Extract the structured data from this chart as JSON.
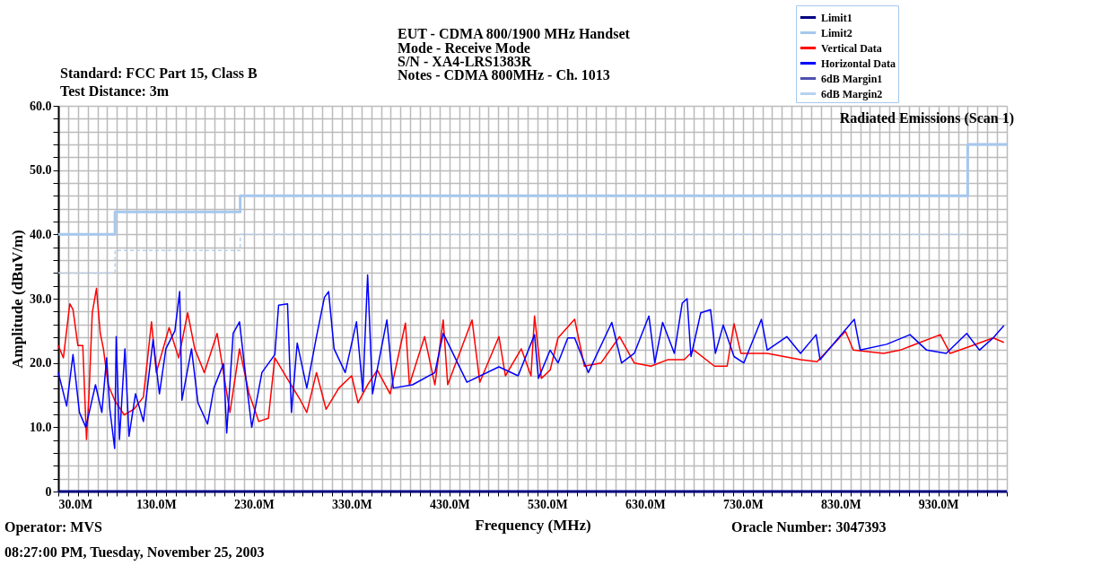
{
  "chart_data": {
    "type": "line",
    "title": "Radiated Emissions (Scan 1)",
    "xlabel": "Frequency (MHz)",
    "ylabel": "Amplitude (dBuV/m)",
    "annotations": [
      "Standard: FCC Part 15, Class B",
      "Test Distance: 3m",
      "EUT - CDMA 800/1900 MHz Handset",
      "Mode - Receive Mode",
      "S/N - XA4-LRS1383R",
      "Notes - CDMA 800MHz - Ch. 1013",
      "Operator: MVS",
      "08:27:00 PM, Tuesday, November 25, 2003",
      "Oracle Number: 3047393"
    ],
    "xlim": [
      30,
      1000
    ],
    "ylim": [
      0,
      60
    ],
    "xticks": [
      {
        "value": 30,
        "label": "30.0M"
      },
      {
        "value": 40,
        "label": null
      },
      {
        "value": 50,
        "label": null
      },
      {
        "value": 60,
        "label": null
      },
      {
        "value": 70,
        "label": null
      },
      {
        "value": 80,
        "label": null
      },
      {
        "value": 90,
        "label": null
      },
      {
        "value": 100,
        "label": null
      },
      {
        "value": 110,
        "label": null
      },
      {
        "value": 120,
        "label": null
      },
      {
        "value": 130,
        "label": "130.0M"
      },
      {
        "value": 140,
        "label": null
      },
      {
        "value": 150,
        "label": null
      },
      {
        "value": 160,
        "label": null
      },
      {
        "value": 170,
        "label": null
      },
      {
        "value": 180,
        "label": null
      },
      {
        "value": 190,
        "label": null
      },
      {
        "value": 200,
        "label": null
      },
      {
        "value": 210,
        "label": null
      },
      {
        "value": 220,
        "label": null
      },
      {
        "value": 230,
        "label": "230.0M"
      },
      {
        "value": 240,
        "label": null
      },
      {
        "value": 250,
        "label": null
      },
      {
        "value": 260,
        "label": null
      },
      {
        "value": 270,
        "label": null
      },
      {
        "value": 280,
        "label": null
      },
      {
        "value": 290,
        "label": null
      },
      {
        "value": 300,
        "label": null
      },
      {
        "value": 310,
        "label": null
      },
      {
        "value": 320,
        "label": null
      },
      {
        "value": 330,
        "label": "330.0M"
      },
      {
        "value": 340,
        "label": null
      },
      {
        "value": 350,
        "label": null
      },
      {
        "value": 360,
        "label": null
      },
      {
        "value": 370,
        "label": null
      },
      {
        "value": 380,
        "label": null
      },
      {
        "value": 390,
        "label": null
      },
      {
        "value": 400,
        "label": null
      },
      {
        "value": 410,
        "label": null
      },
      {
        "value": 420,
        "label": null
      },
      {
        "value": 430,
        "label": "430.0M"
      },
      {
        "value": 440,
        "label": null
      },
      {
        "value": 450,
        "label": null
      },
      {
        "value": 460,
        "label": null
      },
      {
        "value": 470,
        "label": null
      },
      {
        "value": 480,
        "label": null
      },
      {
        "value": 490,
        "label": null
      },
      {
        "value": 500,
        "label": null
      },
      {
        "value": 510,
        "label": null
      },
      {
        "value": 520,
        "label": null
      },
      {
        "value": 530,
        "label": "530.0M"
      },
      {
        "value": 540,
        "label": null
      },
      {
        "value": 550,
        "label": null
      },
      {
        "value": 560,
        "label": null
      },
      {
        "value": 570,
        "label": null
      },
      {
        "value": 580,
        "label": null
      },
      {
        "value": 590,
        "label": null
      },
      {
        "value": 600,
        "label": null
      },
      {
        "value": 610,
        "label": null
      },
      {
        "value": 620,
        "label": null
      },
      {
        "value": 630,
        "label": "630.0M"
      },
      {
        "value": 640,
        "label": null
      },
      {
        "value": 650,
        "label": null
      },
      {
        "value": 660,
        "label": null
      },
      {
        "value": 670,
        "label": null
      },
      {
        "value": 680,
        "label": null
      },
      {
        "value": 690,
        "label": null
      },
      {
        "value": 700,
        "label": null
      },
      {
        "value": 710,
        "label": null
      },
      {
        "value": 720,
        "label": null
      },
      {
        "value": 730,
        "label": "730.0M"
      },
      {
        "value": 740,
        "label": null
      },
      {
        "value": 750,
        "label": null
      },
      {
        "value": 760,
        "label": null
      },
      {
        "value": 770,
        "label": null
      },
      {
        "value": 780,
        "label": null
      },
      {
        "value": 790,
        "label": null
      },
      {
        "value": 800,
        "label": null
      },
      {
        "value": 810,
        "label": null
      },
      {
        "value": 820,
        "label": null
      },
      {
        "value": 830,
        "label": "830.0M"
      },
      {
        "value": 840,
        "label": null
      },
      {
        "value": 850,
        "label": null
      },
      {
        "value": 860,
        "label": null
      },
      {
        "value": 870,
        "label": null
      },
      {
        "value": 880,
        "label": null
      },
      {
        "value": 890,
        "label": null
      },
      {
        "value": 900,
        "label": null
      },
      {
        "value": 910,
        "label": null
      },
      {
        "value": 920,
        "label": null
      },
      {
        "value": 930,
        "label": "930.0M"
      },
      {
        "value": 940,
        "label": null
      },
      {
        "value": 950,
        "label": null
      },
      {
        "value": 960,
        "label": null
      },
      {
        "value": 970,
        "label": null
      },
      {
        "value": 980,
        "label": null
      },
      {
        "value": 990,
        "label": null
      },
      {
        "value": 1000,
        "label": null
      }
    ],
    "yticks": [
      0,
      {
        "value": 2,
        "label": null
      },
      {
        "value": 4,
        "label": null
      },
      {
        "value": 6,
        "label": null
      },
      {
        "value": 8,
        "label": null
      },
      {
        "value": 10,
        "label": "10.0"
      },
      {
        "value": 12,
        "label": null
      },
      {
        "value": 14,
        "label": null
      },
      {
        "value": 16,
        "label": null
      },
      {
        "value": 18,
        "label": null
      },
      {
        "value": 20,
        "label": "20.0"
      },
      {
        "value": 22,
        "label": null
      },
      {
        "value": 24,
        "label": null
      },
      {
        "value": 26,
        "label": null
      },
      {
        "value": 28,
        "label": null
      },
      {
        "value": 30,
        "label": "30.0"
      },
      {
        "value": 32,
        "label": null
      },
      {
        "value": 34,
        "label": null
      },
      {
        "value": 36,
        "label": null
      },
      {
        "value": 38,
        "label": null
      },
      {
        "value": 40,
        "label": "40.0"
      },
      {
        "value": 42,
        "label": null
      },
      {
        "value": 44,
        "label": null
      },
      {
        "value": 46,
        "label": null
      },
      {
        "value": 48,
        "label": null
      },
      {
        "value": 50,
        "label": "50.0"
      },
      {
        "value": 52,
        "label": null
      },
      {
        "value": 54,
        "label": null
      },
      {
        "value": 56,
        "label": null
      },
      {
        "value": 58,
        "label": null
      },
      {
        "value": 60,
        "label": "60.0"
      }
    ],
    "grid": true,
    "legend": "top right",
    "marker": "none",
    "series": [
      {
        "name": "Limit1",
        "color": "#000080",
        "x": [
          30,
          1000
        ],
        "values": [
          0,
          0
        ]
      },
      {
        "name": "Limit2",
        "color": "#a6c8ee",
        "type": "step",
        "x": [
          30,
          88,
          216,
          960,
          1000
        ],
        "values": [
          40,
          43.5,
          46,
          54,
          54
        ]
      },
      {
        "name": "Vertical Data",
        "color": "#ff0000",
        "x": [
          30,
          35.2,
          41.7,
          45,
          50,
          55,
          58.8,
          61.4,
          64.7,
          69,
          72.9,
          76.1,
          81,
          87.6,
          97.4,
          107.3,
          117,
          125.3,
          130.2,
          143.3,
          153.1,
          162.3,
          169.5,
          179.3,
          192.4,
          205.5,
          215.3,
          225.1,
          235,
          244.8,
          251.4,
          264.4,
          277.6,
          284.1,
          294,
          303.8,
          316.9,
          330,
          336.5,
          346.3,
          356.2,
          369.3,
          385,
          389,
          404.6,
          415.1,
          423.6,
          428.2,
          453.1,
          461,
          480.6,
          487.2,
          503.5,
          513.4,
          517,
          524,
          533,
          541,
          558,
          568,
          585,
          604,
          619,
          636,
          653,
          670,
          680,
          701,
          714,
          721,
          728,
          755,
          789,
          806,
          835,
          843,
          874,
          891,
          932,
          942,
          959,
          986,
          997
        ],
        "values": [
          22.7,
          20.8,
          29.2,
          28.3,
          22.7,
          22.7,
          8.1,
          15.2,
          27.8,
          31.6,
          24.6,
          22.2,
          16.6,
          14.2,
          11.9,
          12.8,
          14.7,
          26.4,
          18.5,
          25.5,
          20.8,
          27.8,
          22.2,
          18.5,
          24.6,
          12.3,
          22.2,
          15.2,
          10.9,
          11.4,
          20.8,
          17.5,
          14.2,
          12.3,
          18.5,
          12.8,
          16.1,
          18,
          13.8,
          16.6,
          18.9,
          15.2,
          26.2,
          16.6,
          24.1,
          16.6,
          26.7,
          16.6,
          26.7,
          17,
          24.1,
          18,
          22.2,
          18,
          27.3,
          17.6,
          18.9,
          23.9,
          26.8,
          19.5,
          20,
          24.1,
          20,
          19.5,
          20.5,
          20.5,
          22,
          19.5,
          19.5,
          26.1,
          21.5,
          21.5,
          20.5,
          20.2,
          24.9,
          22,
          21.5,
          22,
          24.4,
          21.5,
          22.4,
          23.9,
          23.2
        ]
      },
      {
        "name": "Horizontal Data",
        "color": "#0000ff",
        "x": [
          30,
          38.5,
          45,
          51.6,
          58.1,
          68,
          74.5,
          79.4,
          82.7,
          87.6,
          89.2,
          92.5,
          98.1,
          102.3,
          108.9,
          117,
          126.9,
          133.4,
          140,
          149.2,
          154.1,
          156.4,
          166.2,
          172.8,
          182.6,
          189.1,
          199,
          202.2,
          208.8,
          215.3,
          221.9,
          227.8,
          238.2,
          251.4,
          255.3,
          264.4,
          268.4,
          274.3,
          284.1,
          294,
          302.1,
          306.4,
          312,
          323.4,
          334.9,
          341.4,
          346.3,
          351.3,
          366,
          372.5,
          392.2,
          415.1,
          423.6,
          447.9,
          480.6,
          500.2,
          517,
          521,
          533,
          541,
          551,
          558,
          572,
          596,
          606,
          619,
          634,
          640,
          648,
          660,
          668,
          673,
          677,
          687,
          697,
          702,
          710,
          721,
          731,
          749,
          755,
          775,
          789,
          805,
          809,
          844,
          850,
          877,
          901,
          918,
          938,
          959,
          972,
          986,
          997
        ],
        "values": [
          18.5,
          13.3,
          21.3,
          12.3,
          10,
          16.6,
          12.3,
          20.8,
          12.8,
          6.7,
          24.1,
          8.1,
          22.2,
          8.6,
          15.2,
          10.9,
          23.6,
          15.2,
          22.2,
          25,
          31.1,
          14.2,
          22.2,
          13.8,
          10.5,
          16.1,
          19.9,
          9.1,
          24.6,
          26.4,
          17.5,
          10,
          18.5,
          21.3,
          29,
          29.2,
          12.3,
          23.1,
          16.1,
          24.1,
          30.2,
          31.1,
          22.2,
          18.5,
          26.4,
          15.6,
          33.7,
          15.2,
          26.7,
          16.1,
          16.6,
          18.5,
          24.6,
          17,
          19.4,
          18,
          24.4,
          17.6,
          22,
          20,
          23.9,
          23.9,
          18.5,
          26.3,
          20,
          21.5,
          27.3,
          20,
          26.3,
          21.5,
          29.3,
          30,
          21,
          27.8,
          28.3,
          21.5,
          25.9,
          21,
          20,
          26.8,
          22,
          24.1,
          21.5,
          24.4,
          20.5,
          26.8,
          22,
          22.9,
          24.4,
          22,
          21.5,
          24.6,
          22,
          23.9,
          25.8
        ]
      },
      {
        "name": "6dB Margin1",
        "color": "#5050b0"
      },
      {
        "name": "6dB Margin2",
        "color": "#b8d2f0",
        "type": "step",
        "line_style": "dashed",
        "x": [
          30,
          88,
          216,
          960
        ],
        "values": [
          34,
          37.5,
          40,
          40
        ]
      }
    ]
  }
}
